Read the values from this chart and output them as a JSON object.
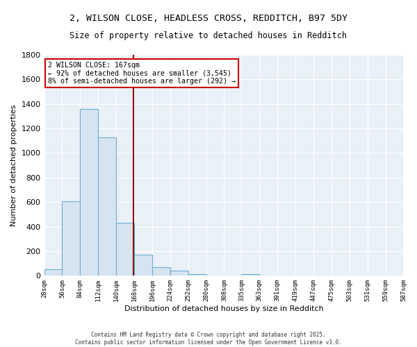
{
  "title": "2, WILSON CLOSE, HEADLESS CROSS, REDDITCH, B97 5DY",
  "subtitle": "Size of property relative to detached houses in Redditch",
  "xlabel": "Distribution of detached houses by size in Redditch",
  "ylabel": "Number of detached properties",
  "bar_color": "#d6e4f0",
  "bar_edge_color": "#6baed6",
  "background_color": "#eaf0f7",
  "grid_color": "#ffffff",
  "bins": [
    28,
    56,
    84,
    112,
    140,
    168,
    196,
    224,
    252,
    280,
    308,
    335,
    363,
    391,
    419,
    447,
    475,
    503,
    531,
    559,
    587
  ],
  "values": [
    55,
    605,
    1360,
    1125,
    430,
    170,
    70,
    40,
    15,
    0,
    0,
    15,
    0,
    0,
    0,
    0,
    0,
    0,
    0,
    0
  ],
  "property_size": 167,
  "annotation_line1": "2 WILSON CLOSE: 167sqm",
  "annotation_line2": "← 92% of detached houses are smaller (3,545)",
  "annotation_line3": "8% of semi-detached houses are larger (292) →",
  "annotation_box_color": "white",
  "annotation_box_edge_color": "#cc0000",
  "vline_x": 167,
  "vline_color": "#8b0000",
  "ylim": [
    0,
    1800
  ],
  "yticks": [
    0,
    200,
    400,
    600,
    800,
    1000,
    1200,
    1400,
    1600,
    1800
  ],
  "footer_line1": "Contains HM Land Registry data © Crown copyright and database right 2025.",
  "footer_line2": "Contains public sector information licensed under the Open Government Licence v3.0."
}
